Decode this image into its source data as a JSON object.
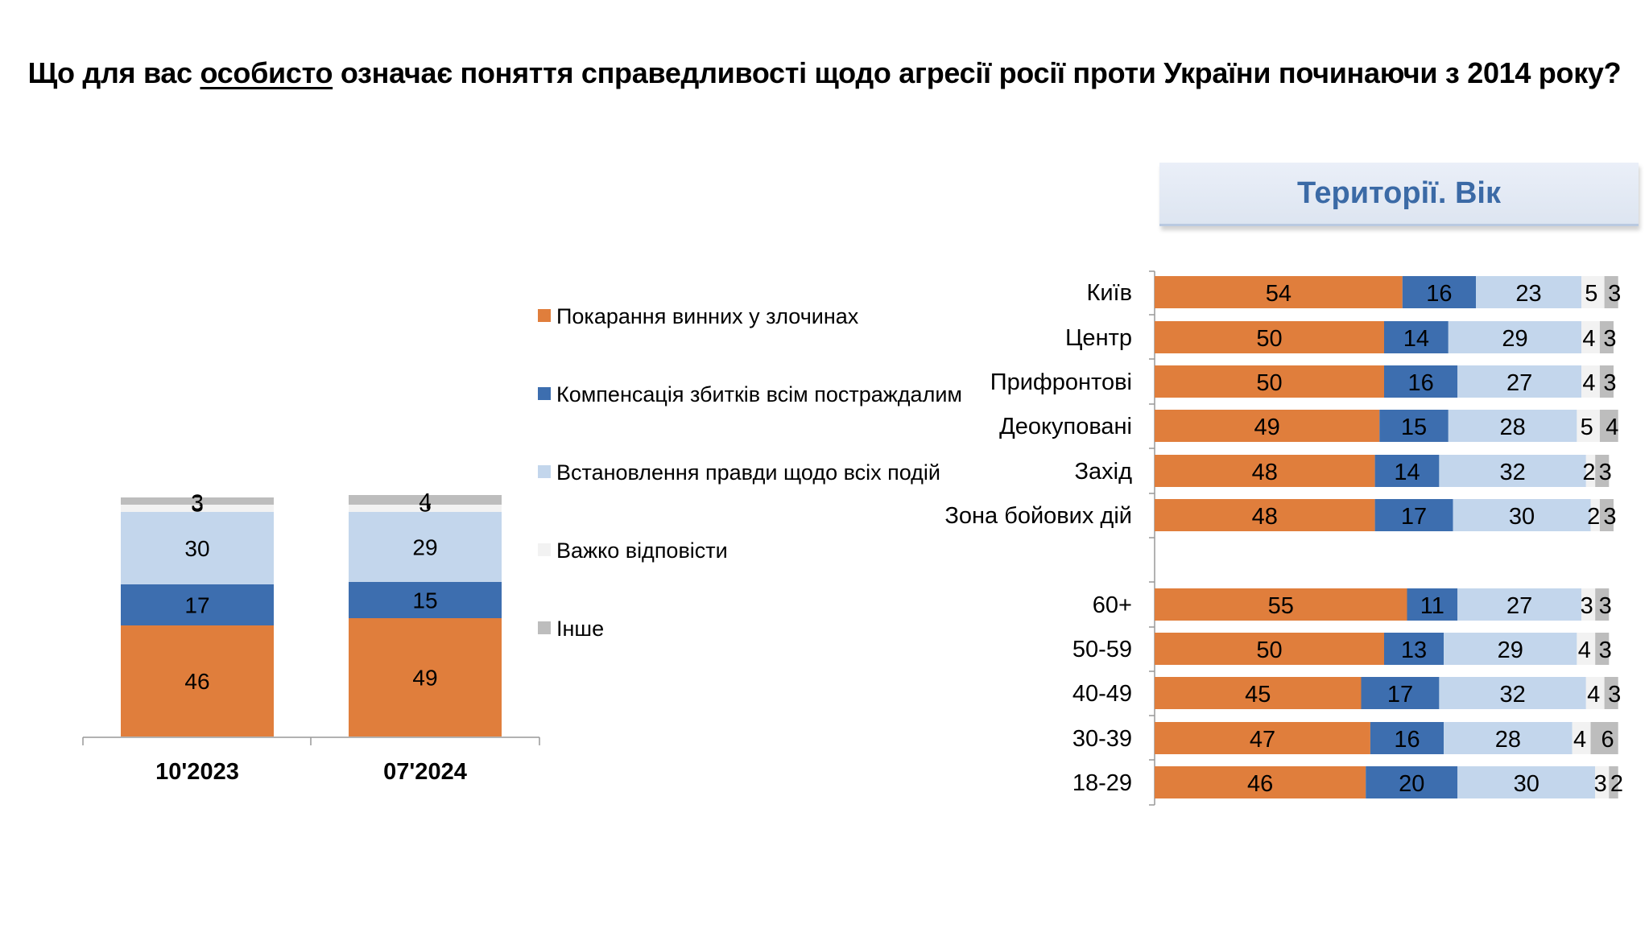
{
  "title": {
    "before": "Що для вас ",
    "underlined": "особисто",
    "after": " означає поняття справедливості щодо агресії росії проти України починаючи з 2014 року?"
  },
  "panel_header": "Території. Вік",
  "colors": {
    "punish": "#e07e3c",
    "compensate": "#3d6eaf",
    "truth": "#c3d6ec",
    "hard": "#f2f2f2",
    "other": "#bdbdbd"
  },
  "chart_data": [
    {
      "type": "bar",
      "stacked": true,
      "orientation": "vertical",
      "categories": [
        "10'2023",
        "07'2024"
      ],
      "series": [
        {
          "name": "Покарання винних у злочинах",
          "values": [
            46,
            49
          ]
        },
        {
          "name": "Компенсація збитків всім постраждалим",
          "values": [
            17,
            15
          ]
        },
        {
          "name": "Встановлення правди щодо всіх подій",
          "values": [
            30,
            29
          ]
        },
        {
          "name": "Важко відповісти",
          "values": [
            3,
            3
          ]
        },
        {
          "name": "Інше",
          "values": [
            3,
            4
          ]
        }
      ],
      "legend": "right",
      "ylim": [
        0,
        100
      ]
    },
    {
      "type": "bar",
      "stacked": true,
      "orientation": "horizontal",
      "categories": [
        "Київ",
        "Центр",
        "Прифронтові",
        "Деокуповані",
        "Захід",
        "Зона бойових дій",
        "60+",
        "50-59",
        "40-49",
        "30-39",
        "18-29"
      ],
      "series": [
        {
          "name": "Покарання винних у злочинах",
          "values": [
            54,
            50,
            50,
            49,
            48,
            48,
            55,
            50,
            45,
            47,
            46
          ]
        },
        {
          "name": "Компенсація збитків всім постраждалим",
          "values": [
            16,
            14,
            16,
            15,
            14,
            17,
            11,
            13,
            17,
            16,
            20
          ]
        },
        {
          "name": "Встановлення правди щодо всіх подій",
          "values": [
            23,
            29,
            27,
            28,
            32,
            30,
            27,
            29,
            32,
            28,
            30
          ]
        },
        {
          "name": "Важко відповісти",
          "values": [
            5,
            4,
            4,
            5,
            2,
            2,
            3,
            4,
            4,
            4,
            3
          ]
        },
        {
          "name": "Інше",
          "values": [
            3,
            3,
            3,
            4,
            3,
            3,
            3,
            3,
            3,
            6,
            2
          ]
        }
      ],
      "xlim": [
        0,
        100
      ]
    }
  ]
}
